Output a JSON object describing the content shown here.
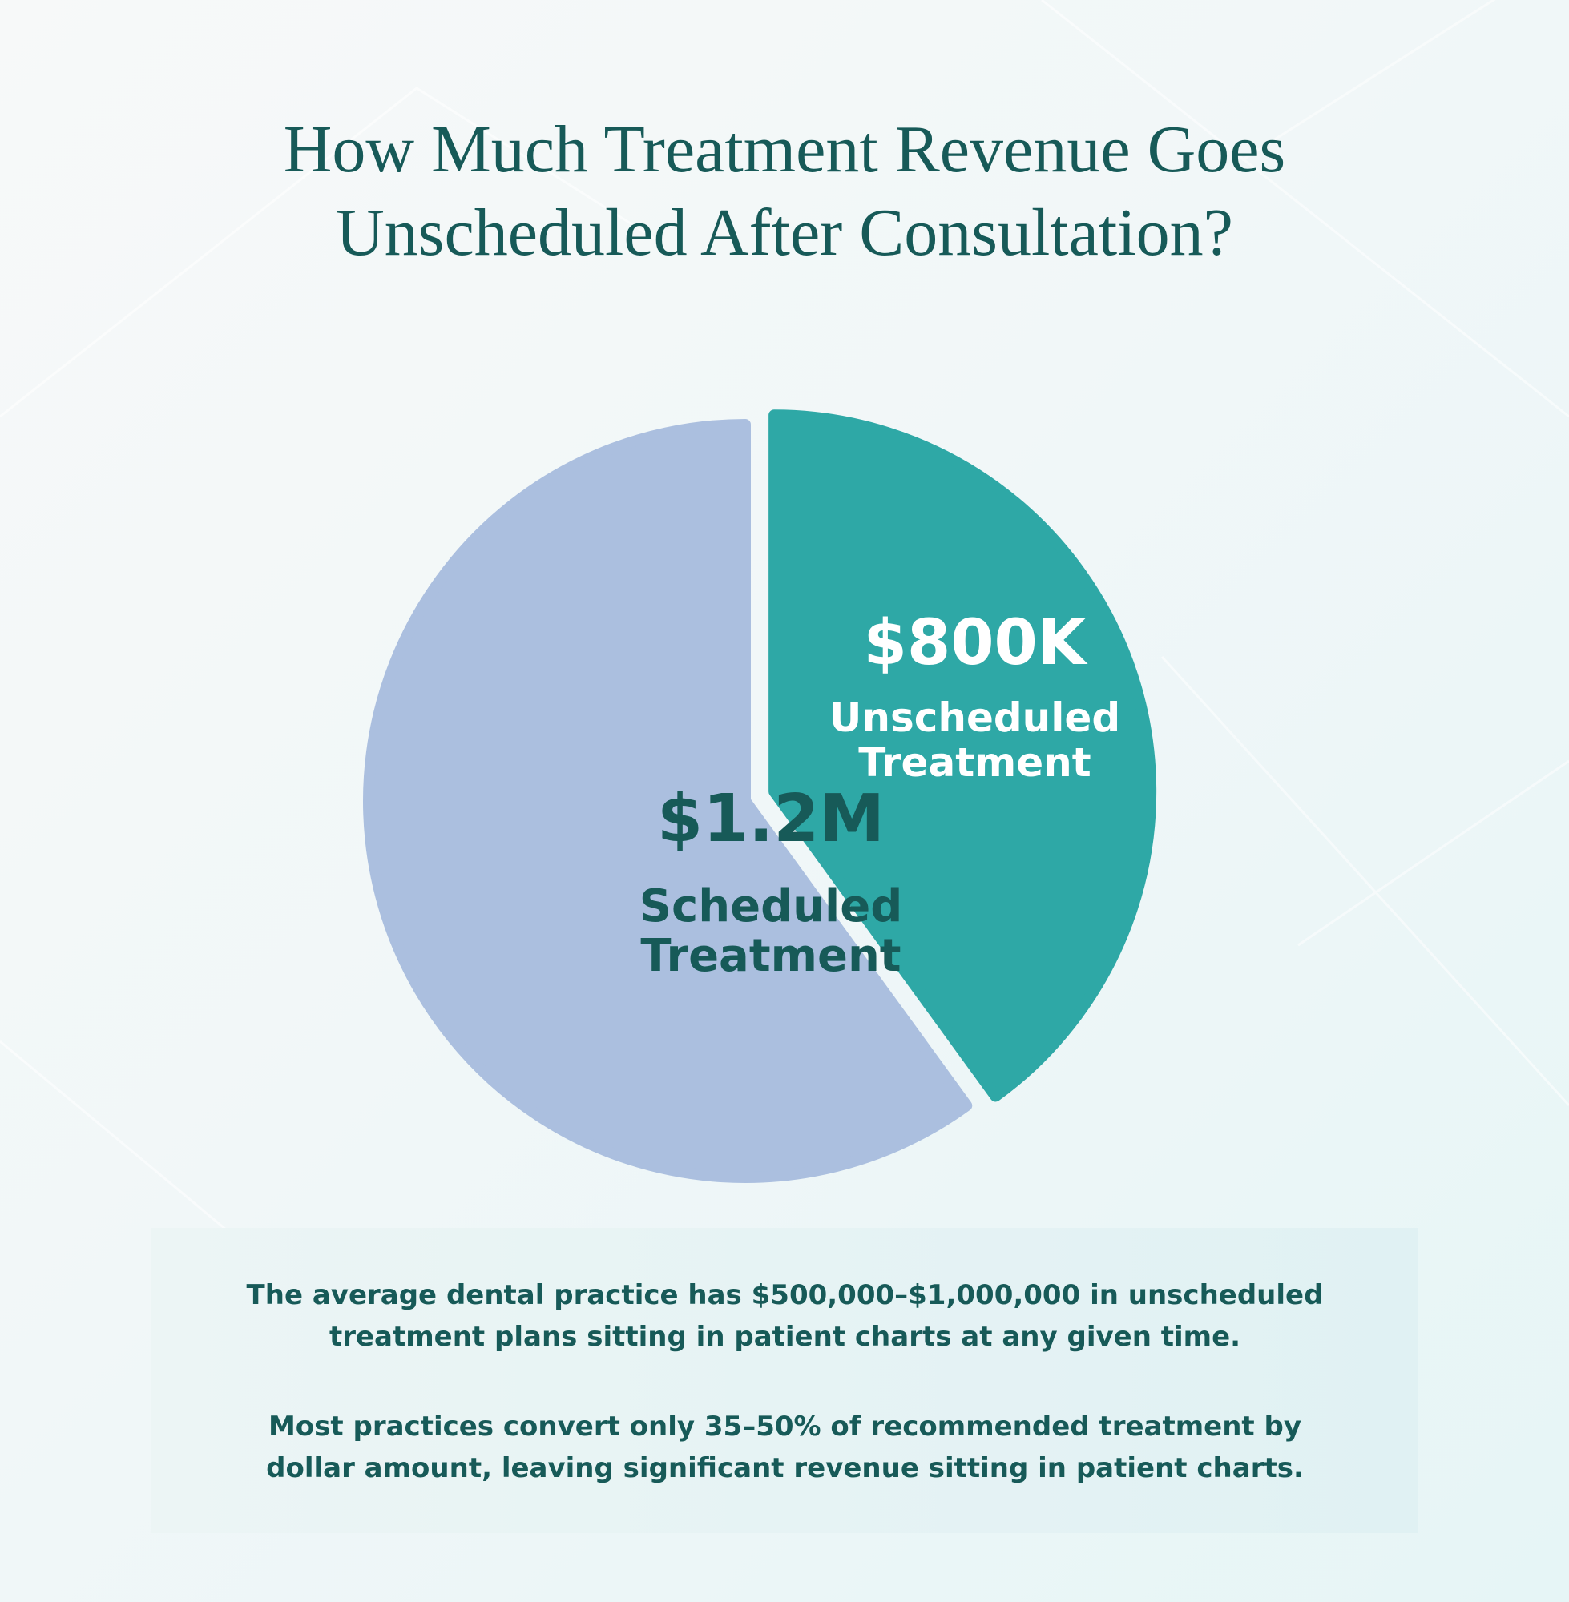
{
  "title_lines": [
    "How Much Treatment Revenue Goes",
    "Unscheduled After Consultation?"
  ],
  "colors": {
    "title": "#175a58",
    "scheduled": "#abbfdf",
    "unscheduled": "#2ea8a6",
    "label_dark": "#175a58",
    "label_light": "#ffffff"
  },
  "chart_data": {
    "type": "pie",
    "title": "How Much Treatment Revenue Goes Unscheduled After Consultation?",
    "slices": [
      {
        "label": "Unscheduled Treatment",
        "value_label": "$800K",
        "value": 800000,
        "exploded": true
      },
      {
        "label": "Scheduled Treatment",
        "value_label": "$1.2M",
        "value": 1200000,
        "exploded": false
      }
    ]
  },
  "info": {
    "p1_lines": [
      "The average dental practice has $500,000–$1,000,000 in unscheduled",
      "treatment plans sitting in patient charts at any given time."
    ],
    "p2_lines": [
      "Most practices convert only 35–50% of recommended treatment by",
      "dollar amount, leaving significant revenue sitting in patient charts."
    ]
  }
}
